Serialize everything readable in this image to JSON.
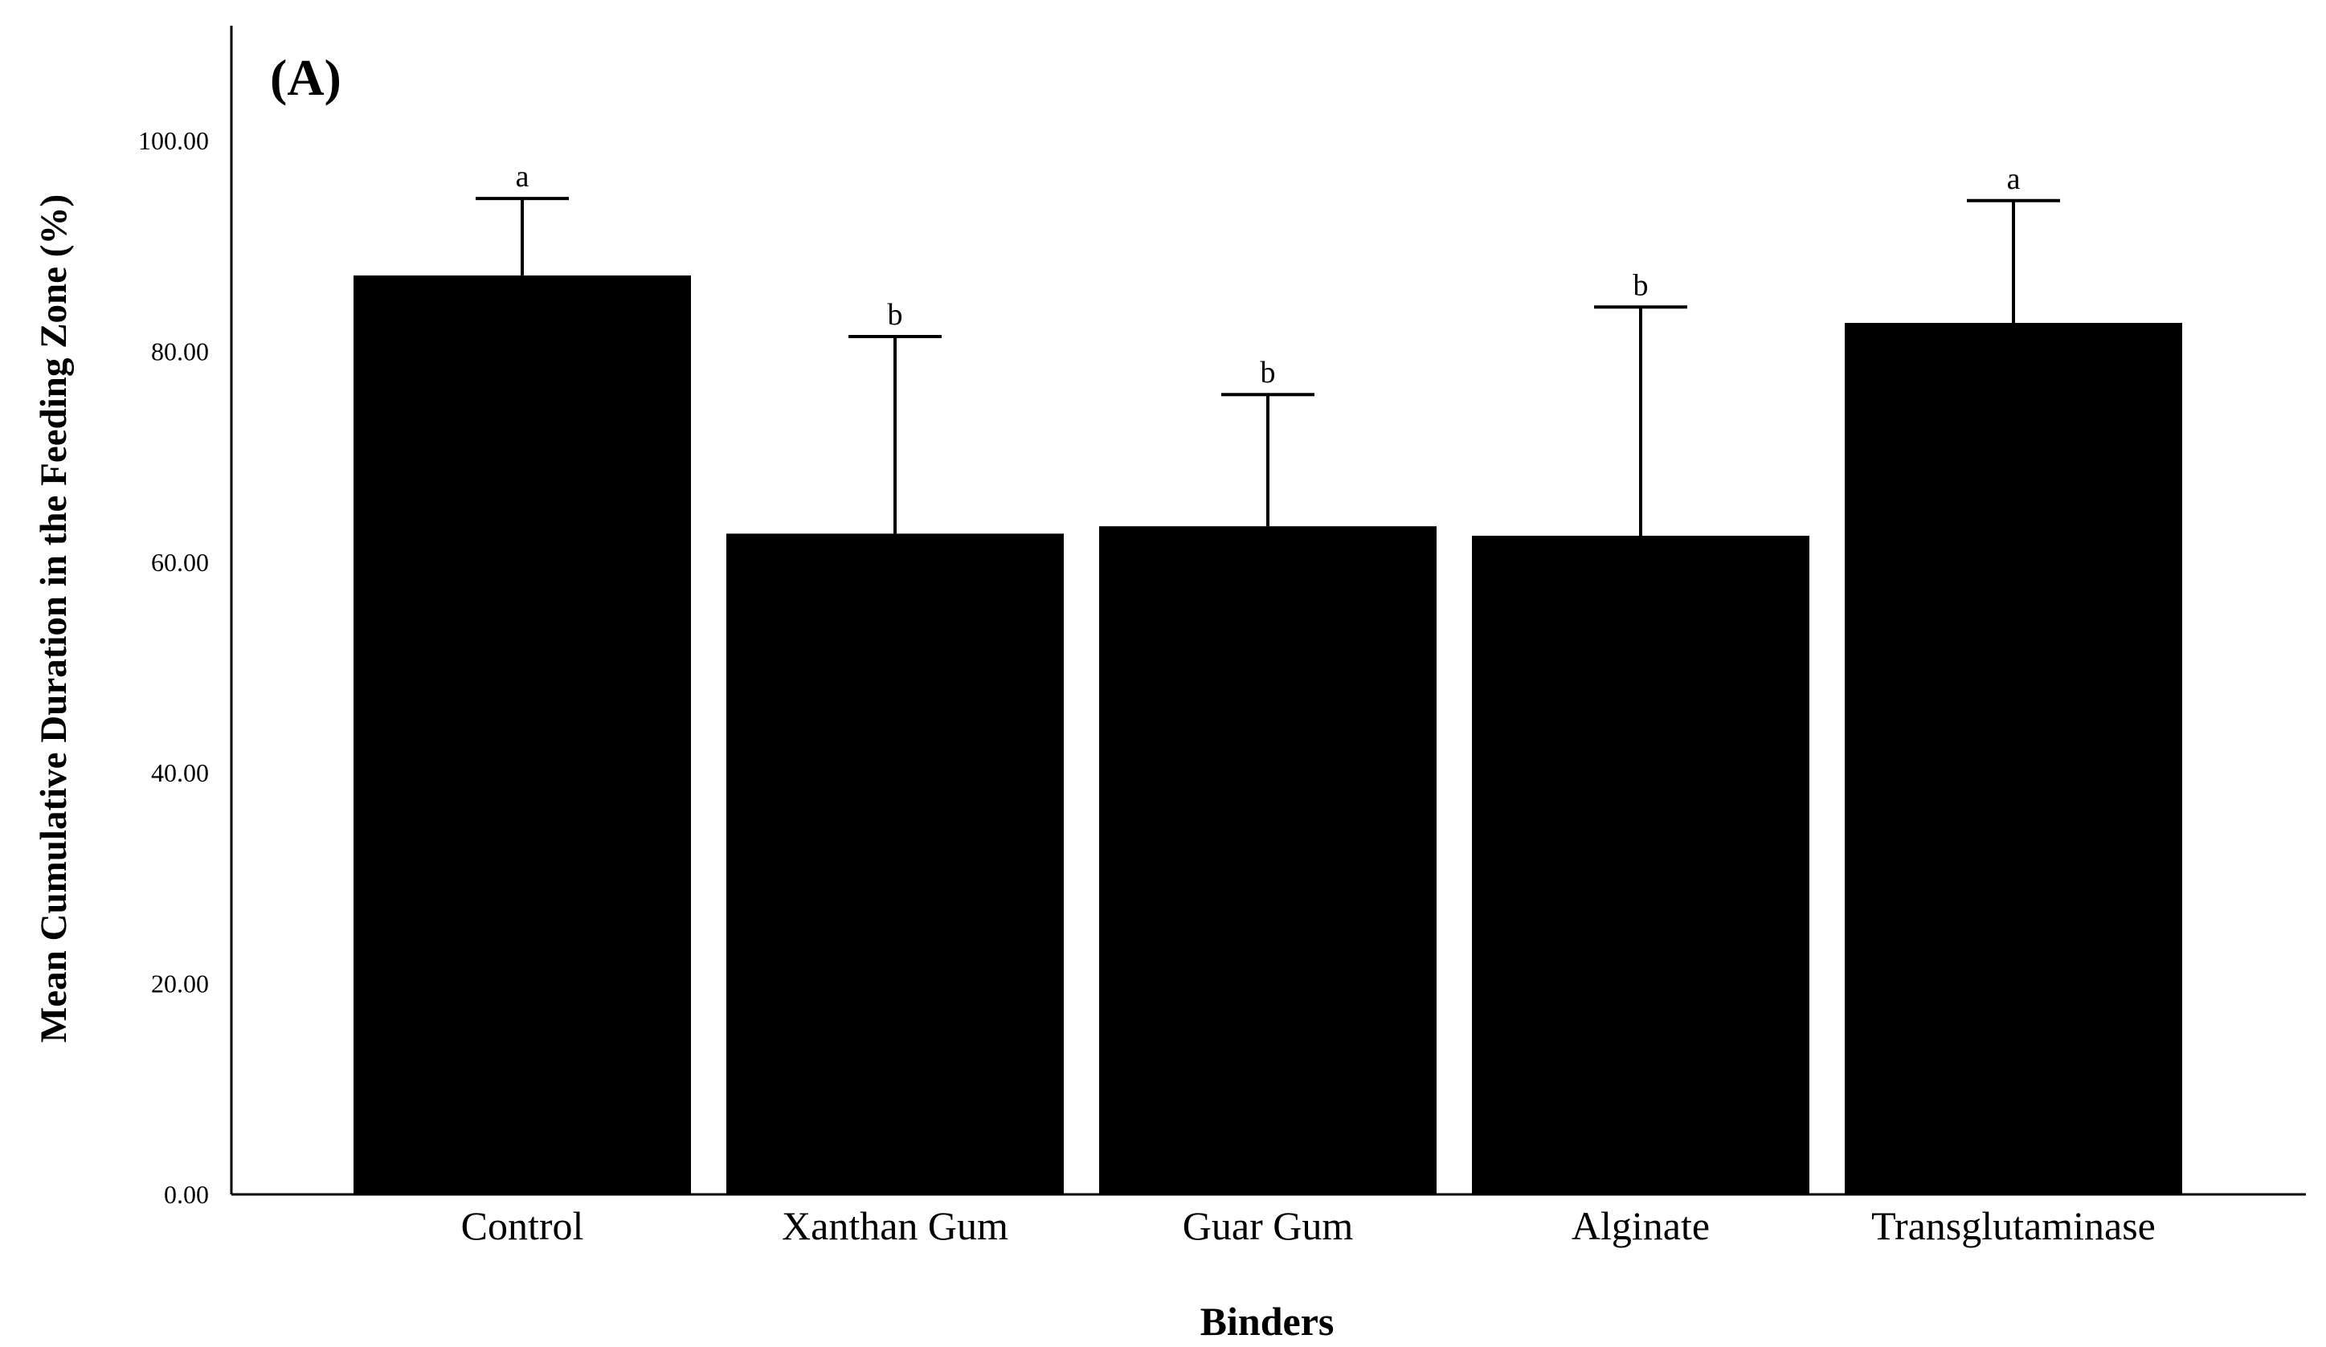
{
  "panel_label": "(A)",
  "chart_data": {
    "type": "bar",
    "title": "",
    "xlabel": "Binders",
    "ylabel": "Mean Cumulative Duration in the Feeding Zone (%)",
    "ylim": [
      0,
      100
    ],
    "yticks": [
      "0.00",
      "20.00",
      "40.00",
      "60.00",
      "80.00",
      "100.00"
    ],
    "categories": [
      "Control",
      "Xanthan Gum",
      "Guar Gum",
      "Alginate",
      "Transglutaminase"
    ],
    "values": [
      87.2,
      62.7,
      63.4,
      62.5,
      82.7
    ],
    "error_upper": [
      94.5,
      81.4,
      75.9,
      84.2,
      94.3
    ],
    "significance": [
      "a",
      "b",
      "b",
      "b",
      "a"
    ],
    "bar_color": "#000000",
    "grid": false,
    "legend": "none"
  }
}
